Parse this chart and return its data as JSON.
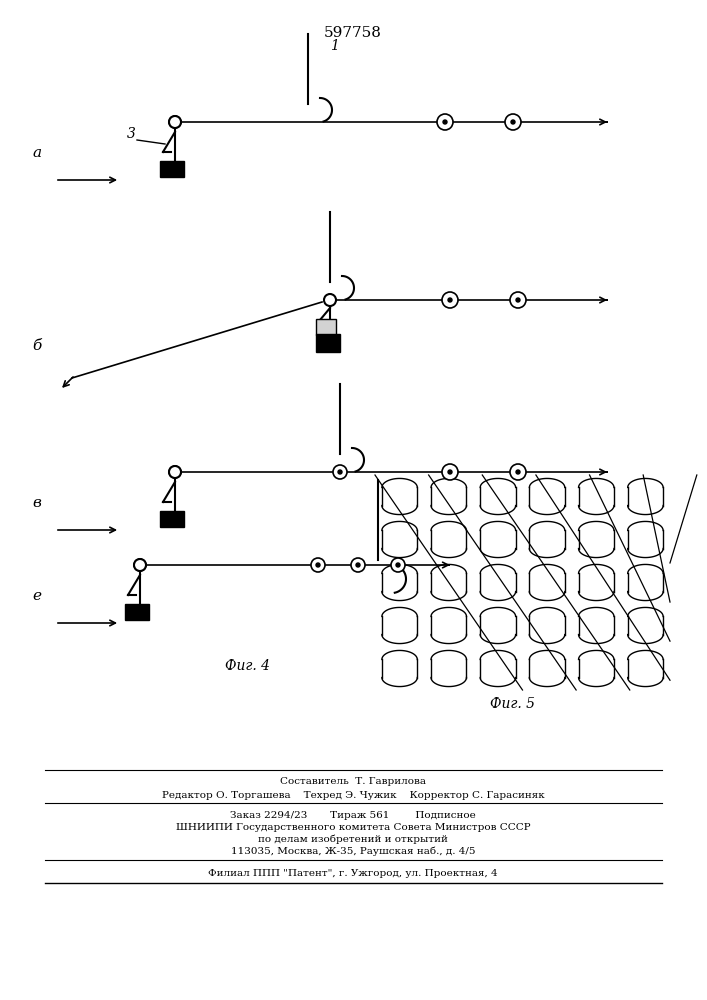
{
  "title": "597758",
  "fig4_label": "Фиг. 4",
  "fig5_label": "Фиг. 5",
  "label_a": "а",
  "label_b": "б",
  "label_v": "в",
  "label_e": "е",
  "footer_lines": [
    "Составитель  Т. Гаврилова",
    "Редактор О. Торгашева    Техред Э. Чужик    Корректор С. Гарасиняк",
    "Заказ 2294/23       Тираж 561        Подписное",
    "ШНИИПИ Государственного комитета Совета Министров СССР",
    "по делам изобретений и открытий",
    "113035, Москва, Ж-35, Раушская наб., д. 4/5",
    "Филиал ППП \"Патент\", г. Ужгород, ул. Проектная, 4"
  ],
  "bg_color": "#ffffff",
  "line_color": "#000000"
}
